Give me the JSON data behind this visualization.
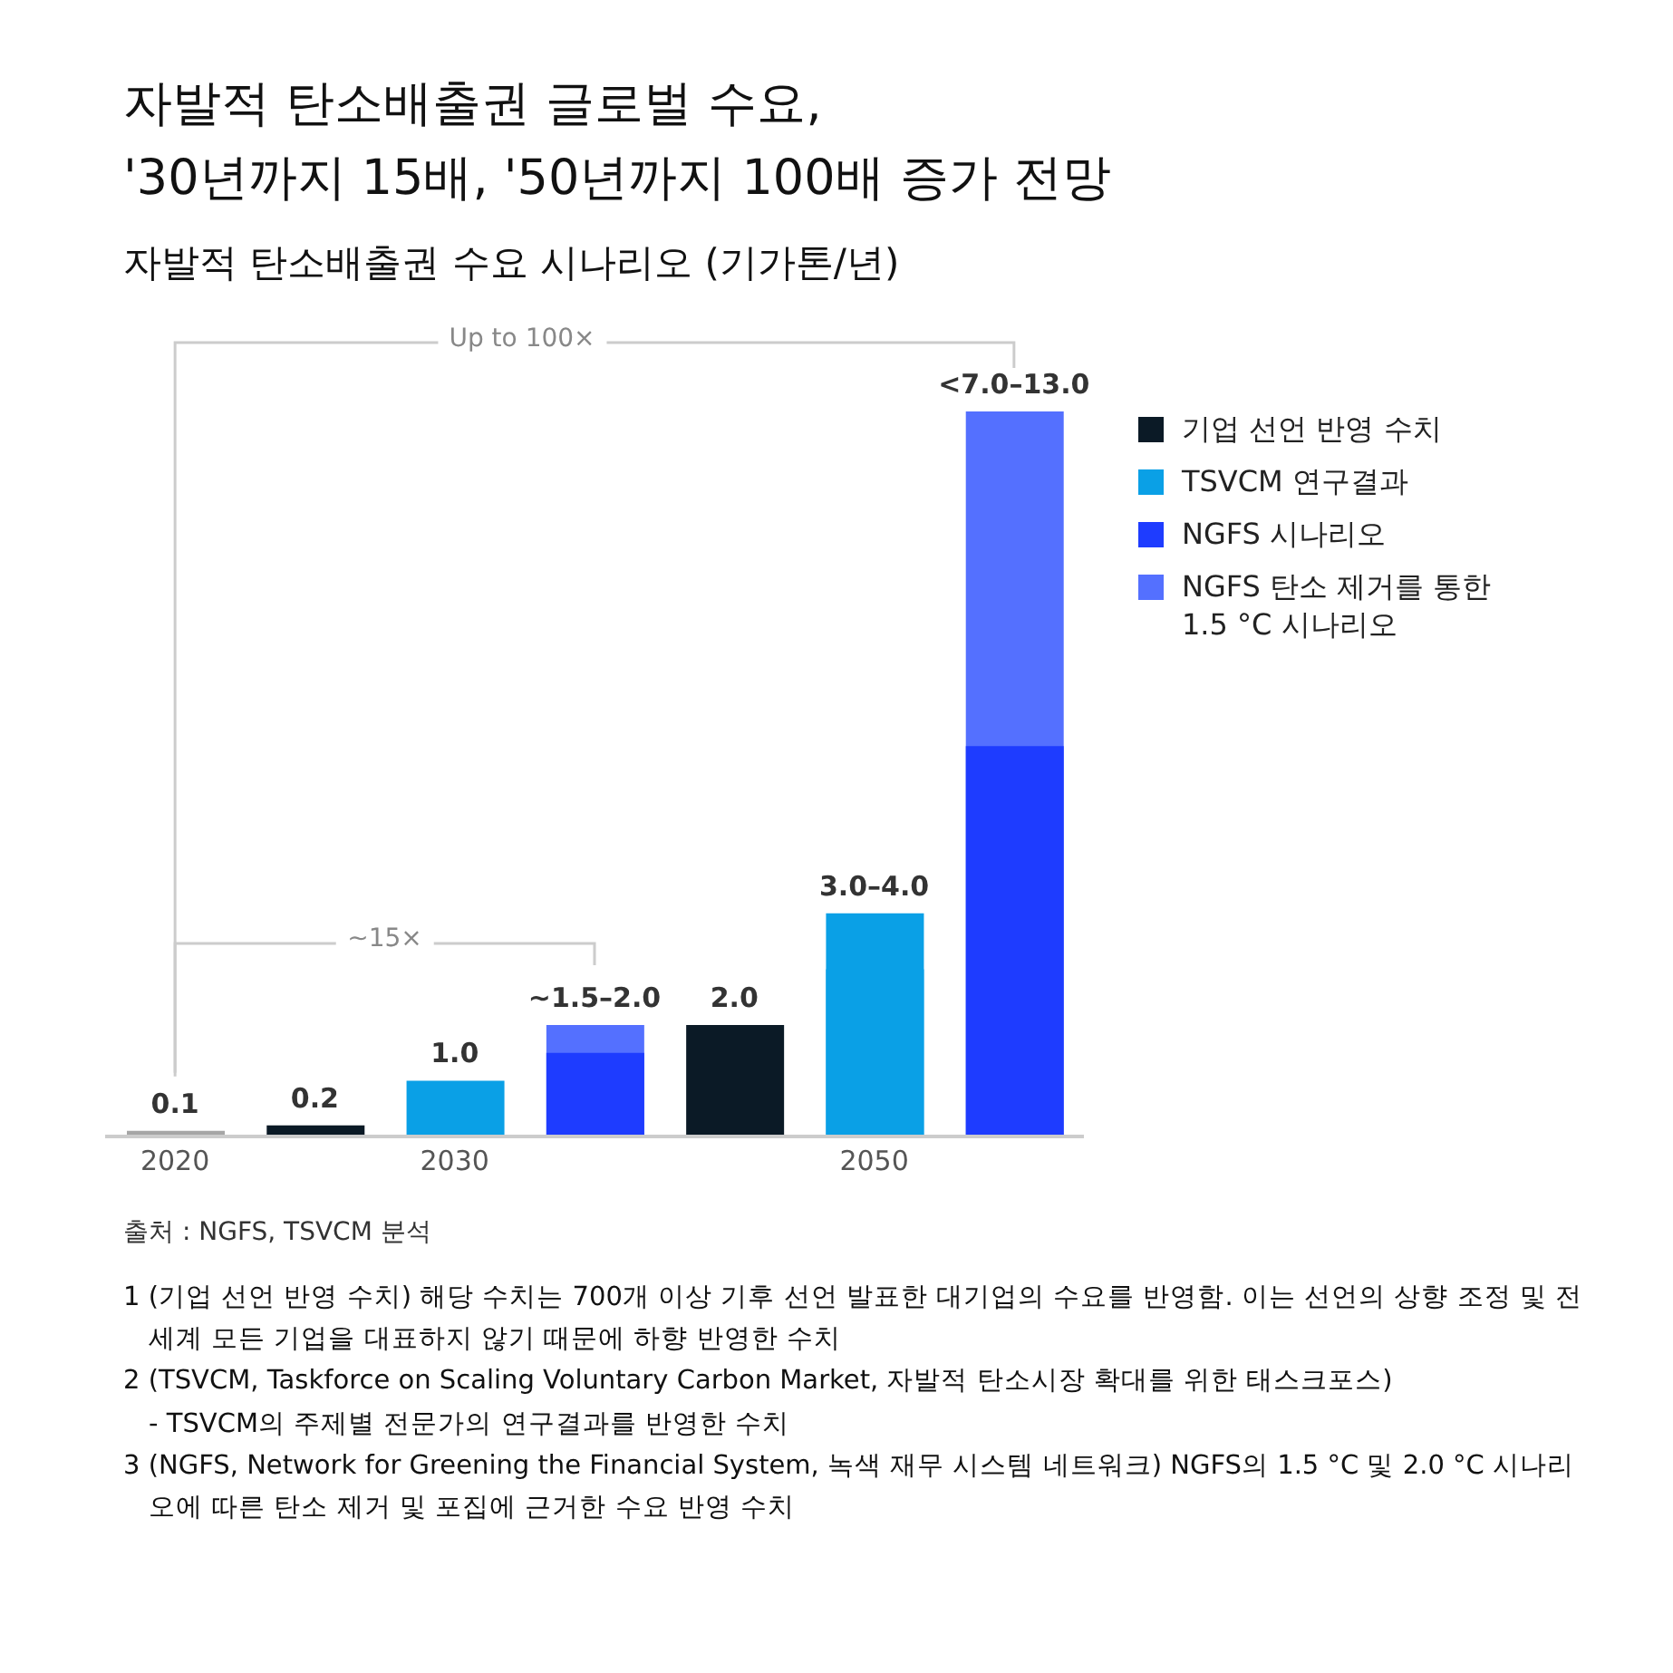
{
  "chart_data": {
    "type": "bar",
    "title": "자발적 탄소배출권 글로벌 수요,\n'30년까지 15배, '50년까지 100배 증가 전망",
    "subtitle": "자발적 탄소배출권 수요 시나리오 (기가톤/년)",
    "categories": [
      "2020",
      null,
      "2030",
      null,
      null,
      "2050",
      null
    ],
    "legend": "right",
    "series": [
      {
        "color": "#a6a6a6",
        "values": [
          0.1,
          null,
          null,
          null,
          null,
          null,
          null
        ],
        "value_labels": [
          "0.1",
          null,
          null,
          null,
          null,
          null,
          null
        ]
      },
      {
        "name": "기업 선언 반영 수치",
        "color": "#0b1a26",
        "values": [
          null,
          0.2,
          null,
          null,
          2.0,
          null,
          null
        ],
        "value_labels": [
          null,
          "0.2",
          null,
          null,
          "2.0",
          null,
          null
        ]
      },
      {
        "name": "TSVCM 연구결과",
        "color": "#0aa0e6",
        "values": [
          null,
          null,
          1.0,
          null,
          null,
          3.0,
          null
        ],
        "value_labels": [
          null,
          null,
          "1.0",
          null,
          null,
          null,
          null
        ]
      },
      {
        "color": "#0aa0e6",
        "values": [
          null,
          null,
          null,
          null,
          null,
          4.0,
          null
        ],
        "value_labels": [
          null,
          null,
          null,
          null,
          null,
          "3.0–4.0",
          null
        ]
      },
      {
        "name": "NGFS 시나리오",
        "color": "#1e3cff",
        "values": [
          null,
          null,
          null,
          1.5,
          null,
          null,
          7.0
        ]
      },
      {
        "name": "NGFS 탄소 제거를 통한 1.5 °C 시나리오",
        "color": "#5470ff",
        "values": [
          null,
          null,
          null,
          2.0,
          null,
          null,
          13.0
        ],
        "value_labels": [
          null,
          null,
          null,
          "~1.5–2.0",
          null,
          null,
          "<7.0–13.0"
        ]
      }
    ],
    "annotations": [
      "Up to 100×",
      "~15×",
      "출처 : NGFS, TSVCM 분석",
      "1 (기업 선언 반영 수치) 해당 수치는 700개 이상 기후 선언 발표한 대기업의 수요를 반영함. 이는 선언의 상향 조정 및 전세계 모든 기업을 대표하지 않기 때문에 하향 반영한 수치",
      "2 (TSVCM, Taskforce on Scaling Voluntary Carbon Market, 자발적 탄소시장 확대를 위한 태스크포스)\n- TSVCM의 주제별 전문가의 연구결과를 반영한 수치",
      "3 (NGFS, Network for Greening the Financial System, 녹색 재무 시스템 네트워크) NGFS의 1.5 °C 및 2.0 °C 시나리오에 따른 탄소 제거 및 포집에 근거한 수요 반영 수치"
    ]
  }
}
